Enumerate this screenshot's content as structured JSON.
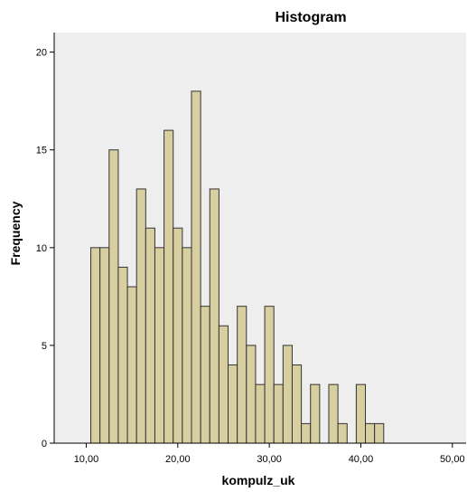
{
  "chart_data": {
    "type": "bar",
    "subtype": "histogram",
    "title": "Histogram",
    "xlabel": "kompulz_uk",
    "ylabel": "Frequency",
    "xlim": [
      6.5,
      51.5
    ],
    "ylim": [
      0,
      21
    ],
    "xticks": [
      10,
      20,
      30,
      40,
      50
    ],
    "xtick_labels": [
      "10,00",
      "20,00",
      "30,00",
      "40,00",
      "50,00"
    ],
    "yticks": [
      0,
      5,
      10,
      15,
      20
    ],
    "grid": false,
    "legend": "none",
    "bin_width": 1,
    "bin_starts": [
      10.5,
      11.5,
      12.5,
      13.5,
      14.5,
      15.5,
      16.5,
      17.5,
      18.5,
      19.5,
      20.5,
      21.5,
      22.5,
      23.5,
      24.5,
      25.5,
      26.5,
      27.5,
      28.5,
      29.5,
      30.5,
      31.5,
      32.5,
      33.5,
      34.5,
      35.5,
      36.5,
      37.5,
      38.5,
      39.5,
      40.5,
      41.5
    ],
    "values": [
      10,
      10,
      15,
      9,
      8,
      13,
      11,
      10,
      16,
      11,
      10,
      18,
      7,
      13,
      6,
      4,
      7,
      5,
      3,
      7,
      3,
      5,
      4,
      1,
      3,
      0,
      3,
      1,
      0,
      3,
      1,
      1
    ],
    "colors": {
      "bar_fill": "#d8cfa0",
      "bar_stroke": "#333333",
      "plot_background": "#eeeeee"
    }
  }
}
